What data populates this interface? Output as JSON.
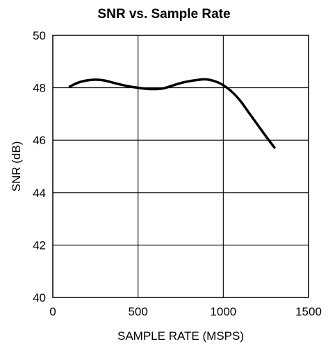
{
  "chart_data": {
    "type": "line",
    "title": "SNR vs. Sample Rate",
    "xlabel": "SAMPLE RATE (MSPS)",
    "ylabel": "SNR (dB)",
    "xlim": [
      0,
      1500
    ],
    "ylim": [
      40,
      50
    ],
    "xticks": [
      0,
      500,
      1000,
      1500
    ],
    "yticks": [
      40,
      42,
      44,
      46,
      48,
      50
    ],
    "xtick_labels": [
      "0",
      "500",
      "1000",
      "1500"
    ],
    "ytick_labels": [
      "40",
      "42",
      "44",
      "46",
      "48",
      "50"
    ],
    "grid": true,
    "legend": "none",
    "series": [
      {
        "x": [
          100,
          150,
          200,
          250,
          300,
          350,
          400,
          450,
          500,
          550,
          600,
          650,
          700,
          750,
          800,
          850,
          900,
          950,
          1000,
          1050,
          1100,
          1150,
          1200,
          1250,
          1300
        ],
        "values": [
          48.05,
          48.2,
          48.28,
          48.31,
          48.28,
          48.2,
          48.12,
          48.05,
          48.0,
          47.96,
          47.95,
          47.98,
          48.08,
          48.18,
          48.25,
          48.3,
          48.32,
          48.25,
          48.1,
          47.85,
          47.5,
          47.05,
          46.6,
          46.15,
          45.72
        ]
      }
    ]
  }
}
